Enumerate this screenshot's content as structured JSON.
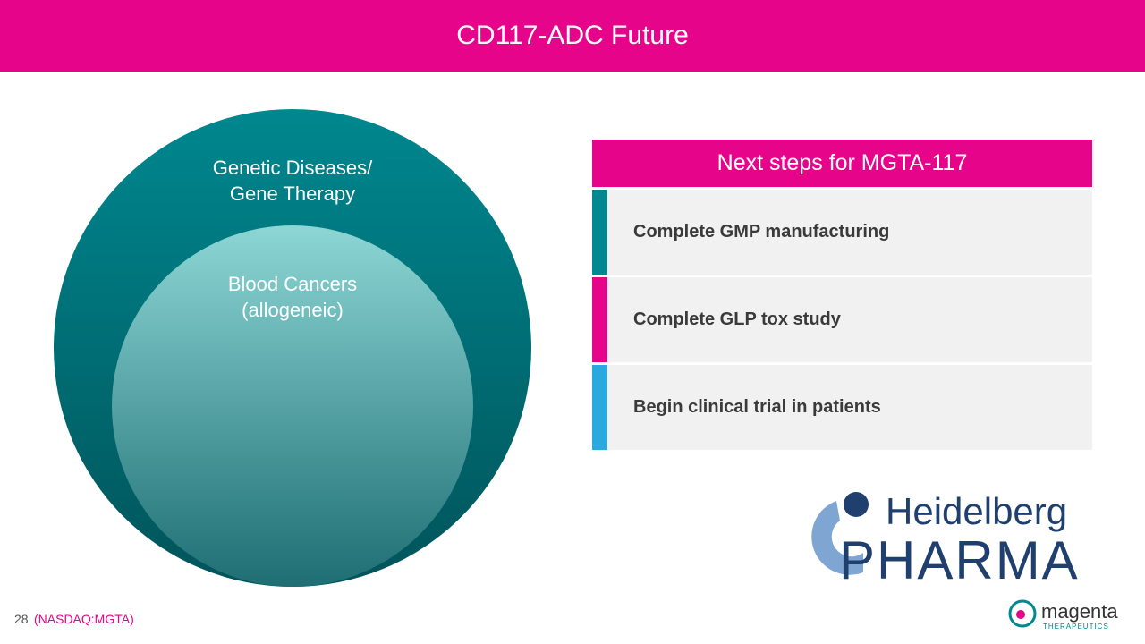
{
  "header": {
    "title": "CD117-ADC Future"
  },
  "diagram": {
    "outer_label": "Genetic Diseases/\nGene Therapy",
    "inner_label": "Blood Cancers\n(allogeneic)"
  },
  "steps": {
    "title": "Next steps for MGTA-117",
    "items": [
      "Complete GMP manufacturing",
      "Complete GLP tox study",
      "Begin clinical trial in patients"
    ]
  },
  "logos": {
    "partner_top": "Heidelberg",
    "partner_bottom": "PHARMA",
    "company": "magenta",
    "company_sub": "THERAPEUTICS"
  },
  "footer": {
    "page": "28",
    "ticker": "(NASDAQ:MGTA)"
  }
}
